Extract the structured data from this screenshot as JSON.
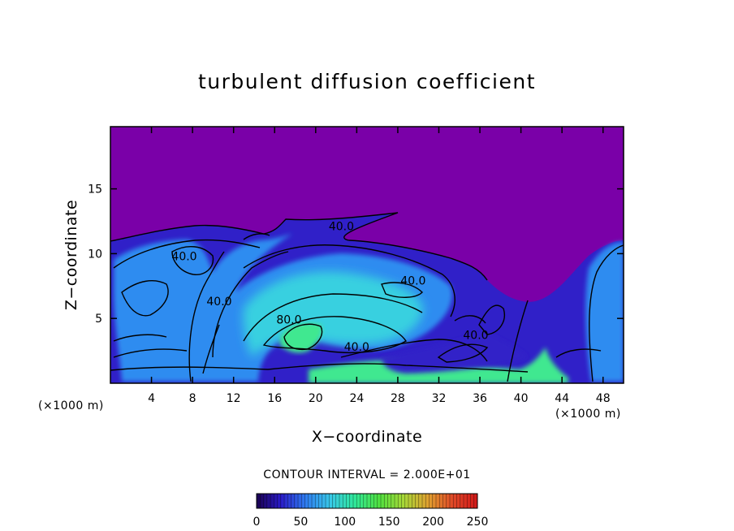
{
  "chart_data": {
    "type": "heatmap",
    "title": "turbulent diffusion coefficient",
    "xlabel": "X−coordinate",
    "ylabel": "Z−coordinate",
    "x_unit_label": "(×1000 m)",
    "xlim": [
      0,
      50
    ],
    "ylim": [
      0,
      19.8
    ],
    "x_ticks": [
      4,
      8,
      12,
      16,
      20,
      24,
      28,
      32,
      36,
      40,
      44,
      48
    ],
    "y_ticks": [
      5,
      10,
      15
    ],
    "contour_interval_text": "CONTOUR INTERVAL = 2.000E+01",
    "contour_labels": [
      {
        "text": "40.0",
        "x": 22.5,
        "z": 11.8
      },
      {
        "text": "40.0",
        "x": 7.2,
        "z": 9.5
      },
      {
        "text": "40.0",
        "x": 10.6,
        "z": 6.0
      },
      {
        "text": "40.0",
        "x": 29.5,
        "z": 7.6
      },
      {
        "text": "80.0",
        "x": 17.4,
        "z": 4.6
      },
      {
        "text": "40.0",
        "x": 24.0,
        "z": 2.5
      },
      {
        "text": "40.0",
        "x": 35.6,
        "z": 3.4
      }
    ],
    "colorbar": {
      "range": [
        0,
        250
      ],
      "ticks": [
        0,
        50,
        100,
        150,
        200,
        250
      ],
      "colors": [
        "#1a0050",
        "#2a1cc8",
        "#2f7cf0",
        "#38c8e8",
        "#30e89a",
        "#50e040",
        "#a8d838",
        "#e0a030",
        "#e04828",
        "#d01818"
      ]
    },
    "colors": {
      "background_field": "#7a00a8",
      "low": "#3020c8",
      "mid": "#2f8cf0",
      "high": "#38d0e0",
      "peak": "#40e890"
    }
  }
}
